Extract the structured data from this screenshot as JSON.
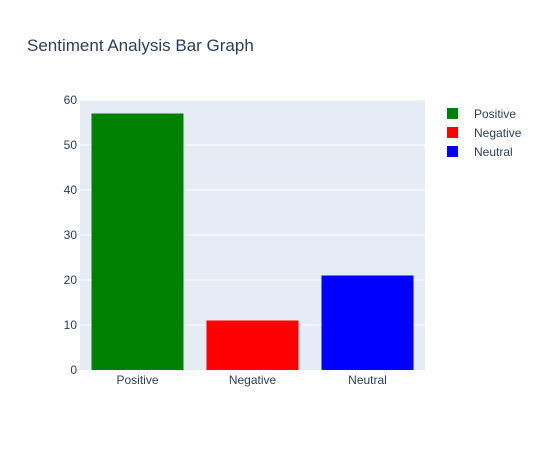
{
  "chart_data": {
    "type": "bar",
    "title": "Sentiment Analysis Bar Graph",
    "xlabel": "",
    "ylabel": "",
    "categories": [
      "Positive",
      "Negative",
      "Neutral"
    ],
    "values": [
      57,
      11,
      21
    ],
    "colors": [
      "#008000",
      "#ff0000",
      "#0000ff"
    ],
    "ylim": [
      0,
      60
    ],
    "yticks": [
      0,
      10,
      20,
      30,
      40,
      50,
      60
    ],
    "grid": true,
    "plot_background": "#e5ecf6",
    "legend": {
      "placement": "top-right",
      "entries": [
        "Positive",
        "Negative",
        "Neutral"
      ]
    }
  }
}
